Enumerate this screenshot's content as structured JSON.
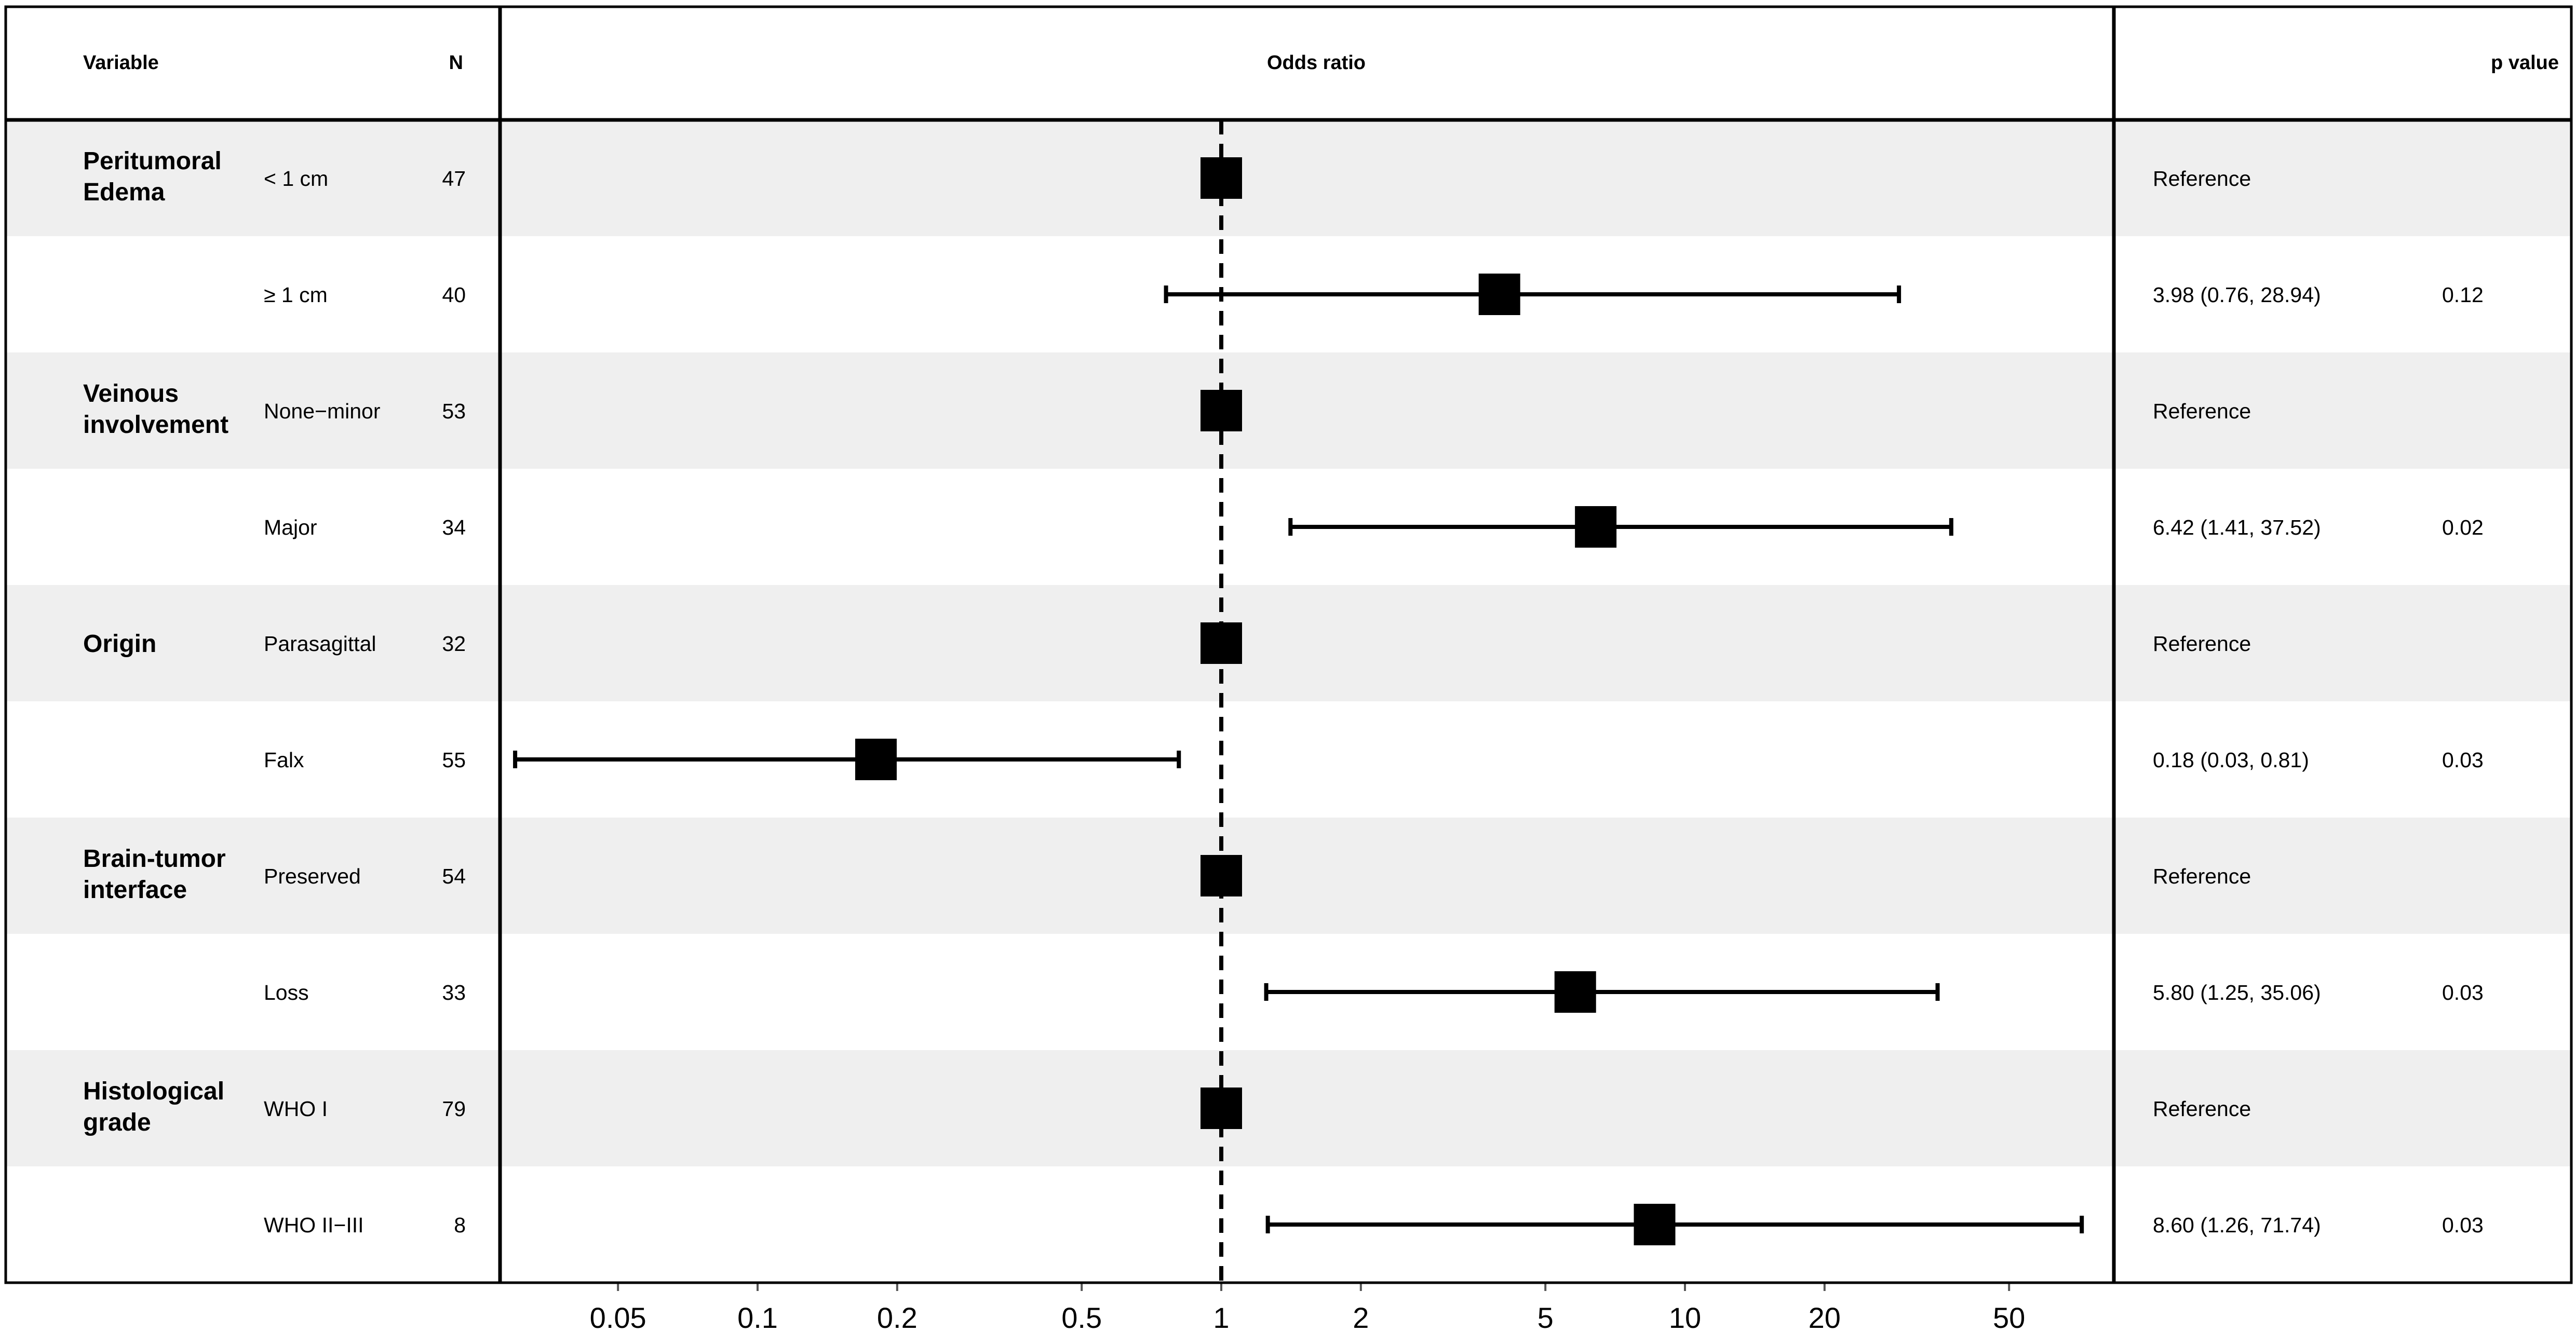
{
  "columns": {
    "variable": "Variable",
    "n": "N",
    "odds_ratio": "Odds ratio",
    "p_value": "p value"
  },
  "chart_data": {
    "type": "forest",
    "x_scale": "log",
    "xlim": [
      0.025,
      100
    ],
    "reference_line": 1,
    "ticks": [
      {
        "value": 0.05,
        "label": "0.05"
      },
      {
        "value": 0.1,
        "label": "0.1"
      },
      {
        "value": 0.2,
        "label": "0.2"
      },
      {
        "value": 0.5,
        "label": "0.5"
      },
      {
        "value": 1,
        "label": "1"
      },
      {
        "value": 2,
        "label": "2"
      },
      {
        "value": 5,
        "label": "5"
      },
      {
        "value": 10,
        "label": "10"
      },
      {
        "value": 20,
        "label": "20"
      },
      {
        "value": 50,
        "label": "50"
      }
    ],
    "rows": [
      {
        "group": [
          "Peritumoral",
          "Edema"
        ],
        "level": "< 1 cm",
        "n": "47",
        "or": 1,
        "lo": null,
        "hi": null,
        "estimate": "Reference",
        "p": ""
      },
      {
        "group": [],
        "level": "≥ 1 cm",
        "n": "40",
        "or": 3.98,
        "lo": 0.76,
        "hi": 28.94,
        "estimate": "3.98 (0.76, 28.94)",
        "p": "0.12"
      },
      {
        "group": [
          "Veinous",
          "involvement"
        ],
        "level": "None−minor",
        "n": "53",
        "or": 1,
        "lo": null,
        "hi": null,
        "estimate": "Reference",
        "p": ""
      },
      {
        "group": [],
        "level": "Major",
        "n": "34",
        "or": 6.42,
        "lo": 1.41,
        "hi": 37.52,
        "estimate": "6.42 (1.41, 37.52)",
        "p": "0.02"
      },
      {
        "group": [
          "Origin"
        ],
        "level": "Parasagittal",
        "n": "32",
        "or": 1,
        "lo": null,
        "hi": null,
        "estimate": "Reference",
        "p": ""
      },
      {
        "group": [],
        "level": "Falx",
        "n": "55",
        "or": 0.18,
        "lo": 0.03,
        "hi": 0.81,
        "estimate": "0.18 (0.03, 0.81)",
        "p": "0.03"
      },
      {
        "group": [
          "Brain-tumor",
          "interface"
        ],
        "level": "Preserved",
        "n": "54",
        "or": 1,
        "lo": null,
        "hi": null,
        "estimate": "Reference",
        "p": ""
      },
      {
        "group": [],
        "level": "Loss",
        "n": "33",
        "or": 5.8,
        "lo": 1.25,
        "hi": 35.06,
        "estimate": "5.80 (1.25, 35.06)",
        "p": "0.03"
      },
      {
        "group": [
          "Histological",
          "grade"
        ],
        "level": "WHO I",
        "n": "79",
        "or": 1,
        "lo": null,
        "hi": null,
        "estimate": "Reference",
        "p": ""
      },
      {
        "group": [],
        "level": "WHO II−III",
        "n": "8",
        "or": 8.6,
        "lo": 1.26,
        "hi": 71.74,
        "estimate": "8.60 (1.26, 71.74)",
        "p": "0.03"
      }
    ]
  }
}
